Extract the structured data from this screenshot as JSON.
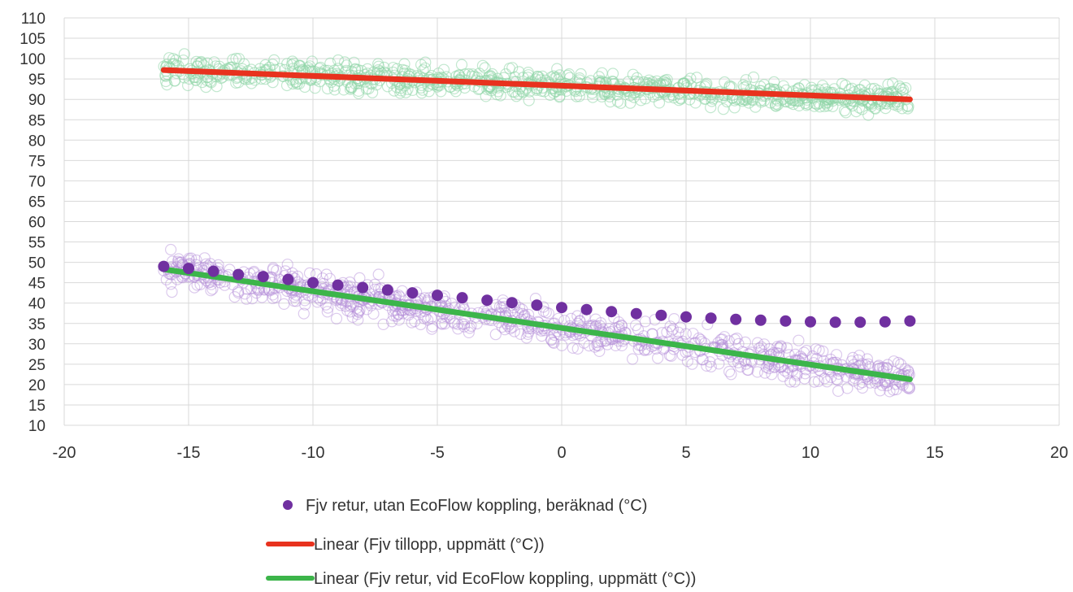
{
  "chart_data": {
    "type": "scatter",
    "xlim": [
      -20,
      20
    ],
    "ylim": [
      10,
      110
    ],
    "x_ticks": [
      "-20",
      "-15",
      "-10",
      "-5",
      "0",
      "5",
      "10",
      "15",
      "20"
    ],
    "y_ticks": [
      "110",
      "105",
      "100",
      "95",
      "90",
      "85",
      "80",
      "75",
      "70",
      "65",
      "60",
      "55",
      "50",
      "45",
      "40",
      "35",
      "30",
      "25",
      "20",
      "15",
      "10"
    ],
    "grid": true,
    "legend_position": "bottom",
    "scatter_clouds": [
      {
        "color": "#8fd6a8",
        "opacity": 0.55,
        "x": [
          -16,
          14
        ],
        "trend_start": 97.2,
        "trend_end": 90.0,
        "spread": 3
      },
      {
        "color": "#b28ad6",
        "opacity": 0.45,
        "x": [
          -16,
          14
        ],
        "trend_start": 48.3,
        "trend_end": 21.3,
        "spread": 4
      }
    ],
    "series": [
      {
        "name": "Fjv retur, utan EcoFlow koppling, beräknad (°C)",
        "type": "scatter",
        "color": "#7030a0",
        "x": [
          -16,
          -15,
          -14,
          -13,
          -12,
          -11,
          -10,
          -9,
          -8,
          -7,
          -6,
          -5,
          -4,
          -3,
          -2,
          -1,
          0,
          1,
          2,
          3,
          4,
          5,
          6,
          7,
          8,
          9,
          10,
          11,
          12,
          13,
          14
        ],
        "y": [
          49.0,
          48.5,
          47.8,
          47.0,
          46.5,
          45.8,
          45.0,
          44.4,
          43.8,
          43.2,
          42.5,
          41.9,
          41.3,
          40.7,
          40.1,
          39.5,
          38.9,
          38.4,
          37.9,
          37.4,
          37.0,
          36.6,
          36.3,
          36.0,
          35.8,
          35.6,
          35.4,
          35.3,
          35.3,
          35.4,
          35.6
        ]
      },
      {
        "name": "Linear (Fjv tillopp, uppmätt (°C))",
        "type": "line",
        "color": "#e8321e",
        "x": [
          -16,
          14
        ],
        "y": [
          97.2,
          90.0
        ]
      },
      {
        "name": "Linear (Fjv retur, vid EcoFlow koppling, uppmätt (°C))",
        "type": "line",
        "color": "#3cb54a",
        "x": [
          -16,
          14
        ],
        "y": [
          48.3,
          21.3
        ]
      }
    ]
  }
}
